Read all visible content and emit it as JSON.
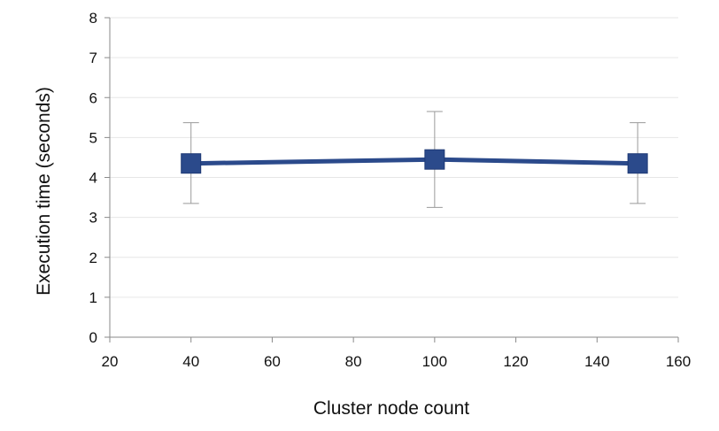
{
  "chart_data": {
    "type": "line",
    "title": "",
    "xlabel": "Cluster node count",
    "ylabel": "Execution time (seconds)",
    "xlim": [
      20,
      160
    ],
    "ylim": [
      0,
      8
    ],
    "x_ticks": [
      20,
      40,
      60,
      80,
      100,
      120,
      140,
      160
    ],
    "y_ticks": [
      0,
      1,
      2,
      3,
      4,
      5,
      6,
      7,
      8
    ],
    "grid": true,
    "legend": "none",
    "series": [
      {
        "color": "#2b4a8b",
        "marker": "square",
        "points": [
          {
            "x": 40,
            "y": 4.35,
            "err_low": 3.35,
            "err_high": 5.37
          },
          {
            "x": 100,
            "y": 4.45,
            "err_low": 3.25,
            "err_high": 5.65
          },
          {
            "x": 150,
            "y": 4.35,
            "err_low": 3.35,
            "err_high": 5.37
          }
        ]
      }
    ],
    "colors": {
      "grid": "#e6e6e6",
      "axis": "#8a8a8a",
      "error_bar": "#9a9a9a"
    }
  }
}
